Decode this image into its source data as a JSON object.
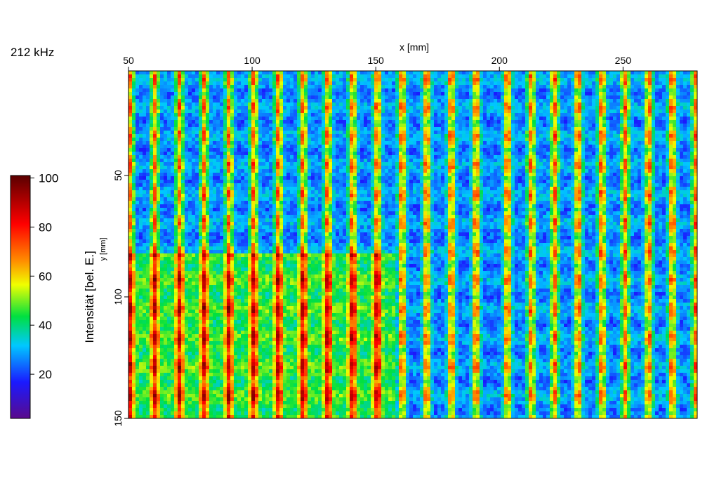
{
  "chart_data": {
    "type": "heatmap",
    "title": "212 kHz",
    "x_label": "x [mm]",
    "y_label": "y [mm]",
    "xlim": [
      50,
      280
    ],
    "xticks": [
      50,
      100,
      150,
      200,
      250
    ],
    "ylim": [
      7,
      150
    ],
    "yticks": [
      50,
      100,
      150
    ],
    "colorbar": {
      "label": "Intensität [bel. E.]",
      "lim": [
        2,
        101
      ],
      "ticks": [
        20,
        40,
        60,
        80,
        100
      ]
    }
  }
}
